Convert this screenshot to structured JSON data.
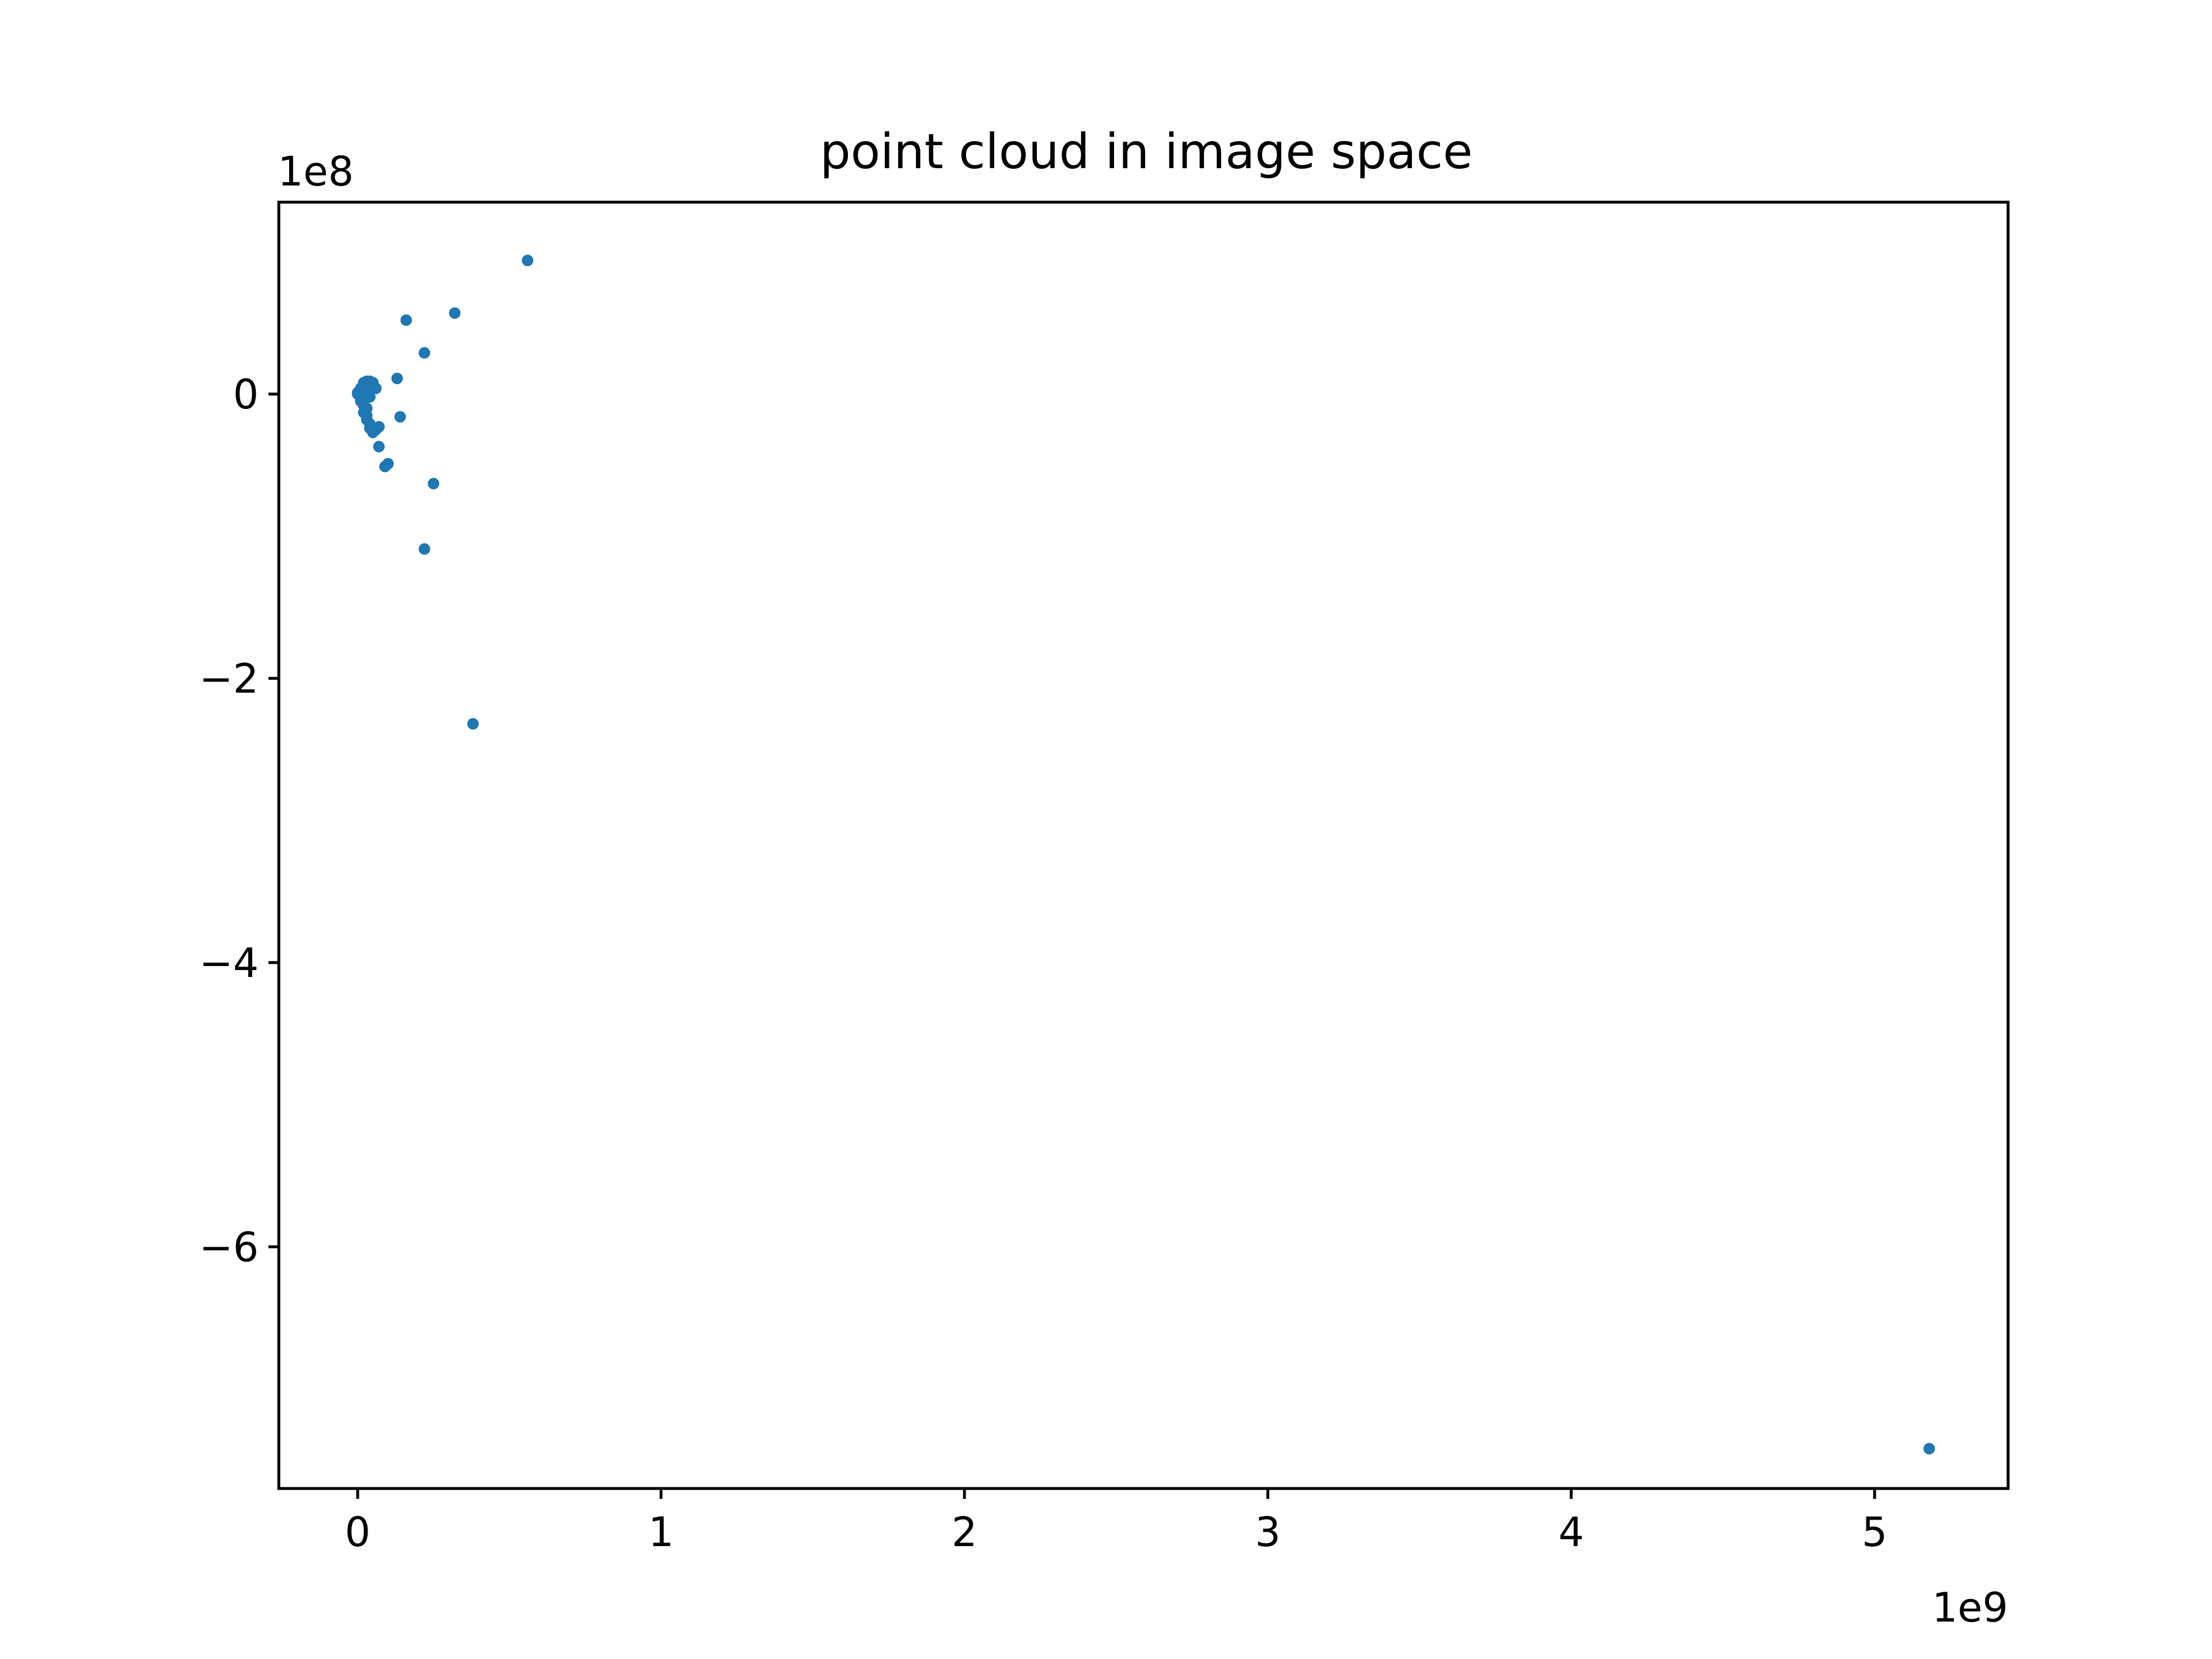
{
  "chart_data": {
    "type": "scatter",
    "title": "point cloud in image space",
    "xlabel": "",
    "ylabel": "",
    "x_offset_label": "1e9",
    "y_offset_label": "1e8",
    "xlim": [
      -0.26,
      5.44
    ],
    "ylim": [
      -7.7,
      1.35
    ],
    "xticks": [
      0,
      1,
      2,
      3,
      4,
      5
    ],
    "xtick_labels": [
      "0",
      "1",
      "2",
      "3",
      "4",
      "5"
    ],
    "yticks": [
      0,
      -2,
      -4,
      -6
    ],
    "ytick_labels": [
      "0",
      "−2",
      "−4",
      "−6"
    ],
    "grid": false,
    "marker_color": "#1f77b4",
    "points": [
      {
        "x": 0.56,
        "y": 0.94
      },
      {
        "x": 0.32,
        "y": 0.57
      },
      {
        "x": 0.16,
        "y": 0.52
      },
      {
        "x": 0.22,
        "y": 0.29
      },
      {
        "x": 0.13,
        "y": 0.11
      },
      {
        "x": 0.14,
        "y": -0.16
      },
      {
        "x": 0.25,
        "y": -0.63
      },
      {
        "x": 0.22,
        "y": -1.09
      },
      {
        "x": 0.38,
        "y": -2.32
      },
      {
        "x": 5.18,
        "y": -7.42
      },
      {
        "x": 0.09,
        "y": -0.51
      },
      {
        "x": 0.1,
        "y": -0.49
      },
      {
        "x": 0.07,
        "y": -0.37
      },
      {
        "x": 0.07,
        "y": -0.23
      },
      {
        "x": 0.06,
        "y": -0.25
      },
      {
        "x": 0.05,
        "y": -0.27
      },
      {
        "x": 0.04,
        "y": -0.24
      },
      {
        "x": 0.06,
        "y": 0.04
      },
      {
        "x": 0.05,
        "y": 0.08
      },
      {
        "x": 0.04,
        "y": 0.09
      },
      {
        "x": 0.03,
        "y": 0.09
      },
      {
        "x": 0.02,
        "y": 0.08
      },
      {
        "x": 0.03,
        "y": 0.05
      },
      {
        "x": 0.02,
        "y": 0.03
      },
      {
        "x": 0.01,
        "y": 0.02
      },
      {
        "x": 0.0,
        "y": 0.0
      },
      {
        "x": 0.01,
        "y": -0.01
      },
      {
        "x": 0.0,
        "y": 0.01
      },
      {
        "x": 0.02,
        "y": -0.03
      },
      {
        "x": 0.01,
        "y": -0.05
      },
      {
        "x": 0.02,
        "y": -0.08
      },
      {
        "x": 0.03,
        "y": -0.1
      },
      {
        "x": 0.02,
        "y": -0.13
      },
      {
        "x": 0.03,
        "y": -0.15
      },
      {
        "x": 0.03,
        "y": -0.18
      },
      {
        "x": 0.04,
        "y": -0.21
      },
      {
        "x": 0.01,
        "y": 0.04
      },
      {
        "x": 0.03,
        "y": 0.0
      },
      {
        "x": 0.04,
        "y": -0.02
      },
      {
        "x": 0.02,
        "y": 0.06
      }
    ]
  }
}
